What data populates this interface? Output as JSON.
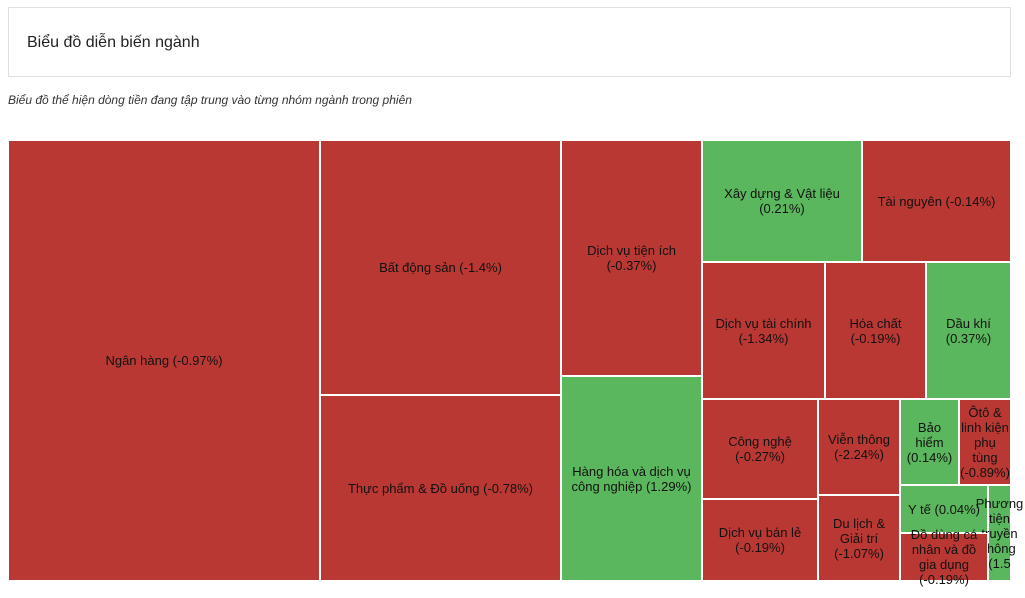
{
  "header": {
    "title": "Biểu đồ diễn biến ngành",
    "subtitle": "Biểu đồ thể hiện dòng tiền đang tập trung vào từng nhóm ngành trong phiên"
  },
  "colors": {
    "down": "#b93834",
    "up": "#5bb75e"
  },
  "chart_data": {
    "type": "treemap",
    "sectors": [
      {
        "label": "Ngân hàng (-0.97%)",
        "change": -0.97
      },
      {
        "label": "Bất động sản (-1.4%)",
        "change": -1.4
      },
      {
        "label": "Thực phẩm & Đồ uống (-0.78%)",
        "change": -0.78
      },
      {
        "label": "Dịch vụ tiện ích\n(-0.37%)",
        "change": -0.37
      },
      {
        "label": "Hàng hóa và dịch vụ\ncông nghiệp (1.29%)",
        "change": 1.29
      },
      {
        "label": "Xây dựng & Vật liệu\n(0.21%)",
        "change": 0.21
      },
      {
        "label": "Tài nguyên (-0.14%)",
        "change": -0.14
      },
      {
        "label": "Dịch vụ tài chính\n(-1.34%)",
        "change": -1.34
      },
      {
        "label": "Hóa chất\n(-0.19%)",
        "change": -0.19
      },
      {
        "label": "Dầu khí\n(0.37%)",
        "change": 0.37
      },
      {
        "label": "Công nghệ\n(-0.27%)",
        "change": -0.27
      },
      {
        "label": "Viễn thông\n(-2.24%)",
        "change": -2.24
      },
      {
        "label": "Bảo hiểm\n(0.14%)",
        "change": 0.14
      },
      {
        "label": "Ôtô &\nlinh kiện\nphụ\ntùng\n(-0.89%)",
        "change": -0.89
      },
      {
        "label": "Dịch vụ bán lẻ\n(-0.19%)",
        "change": -0.19
      },
      {
        "label": "Du lịch &\nGiải trí\n(-1.07%)",
        "change": -1.07
      },
      {
        "label": "Y tế (0.04%)",
        "change": 0.04
      },
      {
        "label": "Phương\ntiện\ntruyền\nthông\n(1.5",
        "change": 1.5
      },
      {
        "label": "Đồ dùng cá\nnhân và đồ\ngia dụng\n(-0.19%)",
        "change": -0.19
      }
    ]
  }
}
